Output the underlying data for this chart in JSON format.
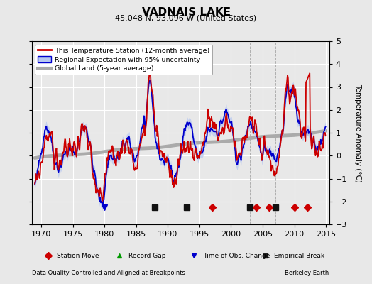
{
  "title": "VADNAIS LAKE",
  "subtitle": "45.048 N, 93.096 W (United States)",
  "ylabel": "Temperature Anomaly (°C)",
  "xlabel_left": "Data Quality Controlled and Aligned at Breakpoints",
  "xlabel_right": "Berkeley Earth",
  "ylim": [
    -3,
    5
  ],
  "xlim": [
    1968.5,
    2015.5
  ],
  "xticks": [
    1970,
    1975,
    1980,
    1985,
    1990,
    1995,
    2000,
    2005,
    2010,
    2015
  ],
  "yticks": [
    -3,
    -2,
    -1,
    0,
    1,
    2,
    3,
    4,
    5
  ],
  "bg_color": "#e8e8e8",
  "grid_color": "#ffffff",
  "station_color": "#cc0000",
  "regional_color": "#0000cc",
  "regional_fill_color": "#aabbee",
  "global_color": "#aaaaaa",
  "empirical_breaks": [
    1988,
    1993,
    2003,
    2007
  ],
  "station_moves": [
    1997,
    2004,
    2006,
    2010,
    2012
  ],
  "obs_changes": [
    1980
  ],
  "record_gaps": [],
  "legend_labels": [
    "This Temperature Station (12-month average)",
    "Regional Expectation with 95% uncertainty",
    "Global Land (5-year average)"
  ],
  "marker_legend": [
    {
      "marker": "D",
      "color": "#cc0000",
      "label": "Station Move"
    },
    {
      "marker": "^",
      "color": "#009900",
      "label": "Record Gap"
    },
    {
      "marker": "v",
      "color": "#0000cc",
      "label": "Time of Obs. Change"
    },
    {
      "marker": "s",
      "color": "#222222",
      "label": "Empirical Break"
    }
  ]
}
